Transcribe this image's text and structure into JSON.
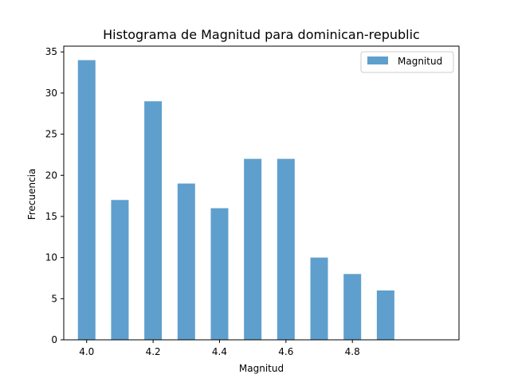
{
  "chart_data": {
    "type": "bar",
    "title": "Histograma de Magnitud para dominican-republic",
    "xlabel": "Magnitud",
    "ylabel": "Frecuencia",
    "series": [
      {
        "name": "Magnitud",
        "color": "#5f9fcd",
        "points": [
          {
            "x": 4.0,
            "y": 34
          },
          {
            "x": 4.1,
            "y": 17
          },
          {
            "x": 4.2,
            "y": 29
          },
          {
            "x": 4.3,
            "y": 19
          },
          {
            "x": 4.4,
            "y": 16
          },
          {
            "x": 4.5,
            "y": 22
          },
          {
            "x": 4.6,
            "y": 22
          },
          {
            "x": 4.7,
            "y": 10
          },
          {
            "x": 4.8,
            "y": 8
          },
          {
            "x": 4.9,
            "y": 6
          }
        ]
      }
    ],
    "xticks": [
      "4.0",
      "4.2",
      "4.4",
      "4.6",
      "4.8"
    ],
    "yticks": [
      "0",
      "5",
      "10",
      "15",
      "20",
      "25",
      "30",
      "35"
    ],
    "xlim": [
      3.955,
      5.145
    ],
    "ylim": [
      0,
      35.7
    ],
    "grid": false,
    "legend": "top-right"
  }
}
